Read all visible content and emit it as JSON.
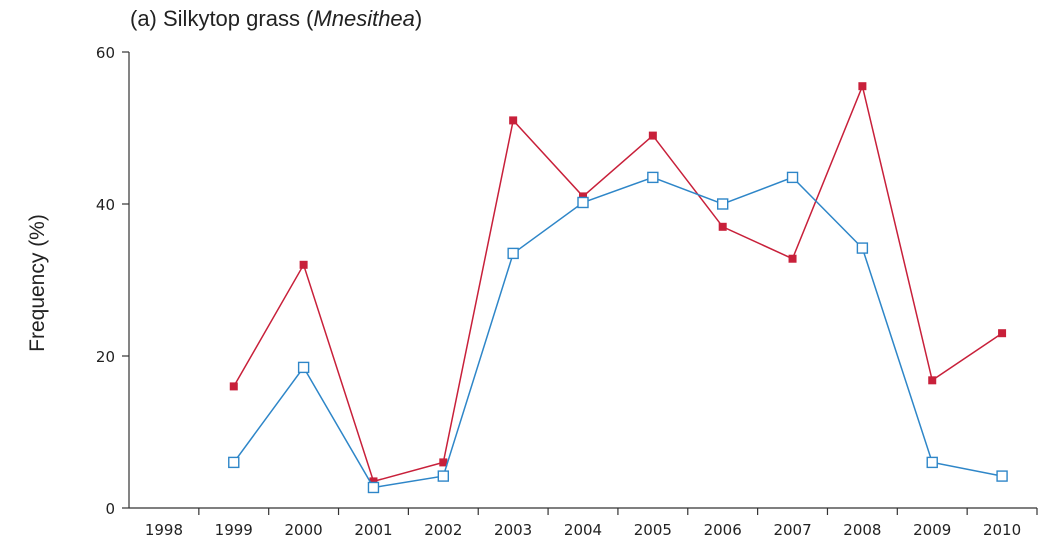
{
  "chart_data": {
    "type": "line",
    "title": {
      "prefix": "(a) Silkytop grass (",
      "genus": "Mnesithea",
      "suffix": ")"
    },
    "xlabel": "",
    "ylabel": "Frequency (%)",
    "categories": [
      "1998",
      "1999",
      "2000",
      "2001",
      "2002",
      "2003",
      "2004",
      "2005",
      "2006",
      "2007",
      "2008",
      "2009",
      "2010"
    ],
    "ylim": [
      0,
      60
    ],
    "yticks": [
      0,
      20,
      40,
      60
    ],
    "grid": false,
    "legend": "none",
    "series": [
      {
        "marker": "filled-square",
        "color": "#c8203a",
        "values": [
          null,
          16,
          32,
          3.5,
          6,
          51,
          41,
          49,
          37,
          32.8,
          55.5,
          16.8,
          23
        ]
      },
      {
        "marker": "open-square",
        "color": "#2e86c8",
        "values": [
          null,
          6,
          18.5,
          2.7,
          4.2,
          33.5,
          40.2,
          43.5,
          40,
          43.5,
          34.2,
          6,
          4.2
        ]
      }
    ]
  }
}
